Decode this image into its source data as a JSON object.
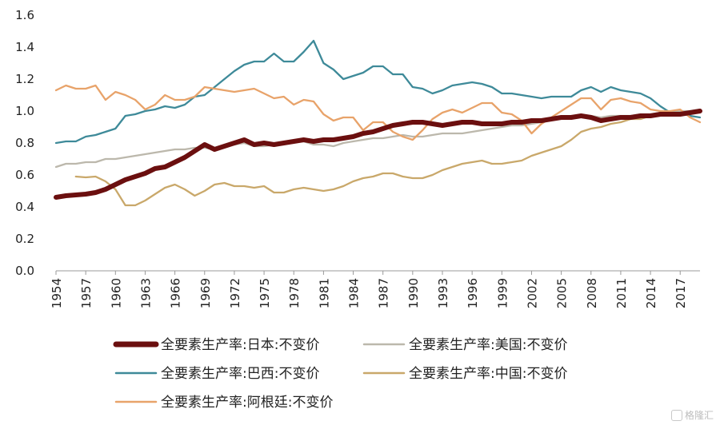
{
  "chart_data": {
    "type": "line",
    "ylim": [
      0,
      1.6
    ],
    "y_ticks": [
      "0.0",
      "0.2",
      "0.4",
      "0.6",
      "0.8",
      "1.0",
      "1.2",
      "1.4",
      "1.6"
    ],
    "x_tick_years": [
      "1954",
      "1957",
      "1960",
      "1963",
      "1966",
      "1969",
      "1972",
      "1975",
      "1978",
      "1981",
      "1984",
      "1987",
      "1990",
      "1993",
      "1996",
      "1999",
      "2002",
      "2005",
      "2008",
      "2011",
      "2014",
      "2017"
    ],
    "x_range": [
      1954,
      2019
    ],
    "grid": false,
    "legend_position": "bottom",
    "series": [
      {
        "name": "全要素生产率:日本:不变价",
        "color": "#6b0f0f",
        "x": [
          1954,
          1955,
          1956,
          1957,
          1958,
          1959,
          1960,
          1961,
          1962,
          1963,
          1964,
          1965,
          1966,
          1967,
          1968,
          1969,
          1970,
          1971,
          1972,
          1973,
          1974,
          1975,
          1976,
          1977,
          1978,
          1979,
          1980,
          1981,
          1982,
          1983,
          1984,
          1985,
          1986,
          1987,
          1988,
          1989,
          1990,
          1991,
          1992,
          1993,
          1994,
          1995,
          1996,
          1997,
          1998,
          1999,
          2000,
          2001,
          2002,
          2003,
          2004,
          2005,
          2006,
          2007,
          2008,
          2009,
          2010,
          2011,
          2012,
          2013,
          2014,
          2015,
          2016,
          2017,
          2018,
          2019
        ],
        "y": [
          0.46,
          0.47,
          0.475,
          0.48,
          0.49,
          0.51,
          0.54,
          0.57,
          0.59,
          0.61,
          0.64,
          0.65,
          0.68,
          0.71,
          0.75,
          0.79,
          0.76,
          0.78,
          0.8,
          0.82,
          0.79,
          0.8,
          0.79,
          0.8,
          0.81,
          0.82,
          0.81,
          0.82,
          0.82,
          0.83,
          0.84,
          0.86,
          0.87,
          0.89,
          0.91,
          0.92,
          0.93,
          0.93,
          0.92,
          0.91,
          0.92,
          0.93,
          0.93,
          0.92,
          0.92,
          0.92,
          0.93,
          0.93,
          0.94,
          0.94,
          0.95,
          0.96,
          0.96,
          0.97,
          0.96,
          0.94,
          0.95,
          0.96,
          0.96,
          0.97,
          0.97,
          0.98,
          0.98,
          0.98,
          0.99,
          1.0
        ]
      },
      {
        "name": "全要素生产率:美国:不变价",
        "color": "#bcb8ac",
        "x": [
          1954,
          1955,
          1956,
          1957,
          1958,
          1959,
          1960,
          1961,
          1962,
          1963,
          1964,
          1965,
          1966,
          1967,
          1968,
          1969,
          1970,
          1971,
          1972,
          1973,
          1974,
          1975,
          1976,
          1977,
          1978,
          1979,
          1980,
          1981,
          1982,
          1983,
          1984,
          1985,
          1986,
          1987,
          1988,
          1989,
          1990,
          1991,
          1992,
          1993,
          1994,
          1995,
          1996,
          1997,
          1998,
          1999,
          2000,
          2001,
          2002,
          2003,
          2004,
          2005,
          2006,
          2007,
          2008,
          2009,
          2010,
          2011,
          2012,
          2013,
          2014,
          2015,
          2016,
          2017,
          2018,
          2019
        ],
        "y": [
          0.65,
          0.67,
          0.67,
          0.68,
          0.68,
          0.7,
          0.7,
          0.71,
          0.72,
          0.73,
          0.74,
          0.75,
          0.76,
          0.76,
          0.77,
          0.77,
          0.76,
          0.78,
          0.79,
          0.8,
          0.78,
          0.78,
          0.79,
          0.8,
          0.81,
          0.81,
          0.79,
          0.79,
          0.78,
          0.8,
          0.81,
          0.82,
          0.83,
          0.83,
          0.84,
          0.85,
          0.84,
          0.84,
          0.85,
          0.86,
          0.86,
          0.86,
          0.87,
          0.88,
          0.89,
          0.9,
          0.91,
          0.91,
          0.92,
          0.93,
          0.95,
          0.96,
          0.97,
          0.97,
          0.97,
          0.96,
          0.97,
          0.97,
          0.97,
          0.98,
          0.98,
          0.99,
          0.99,
          1.0,
          1.0,
          1.01
        ]
      },
      {
        "name": "全要素生产率:巴西:不变价",
        "color": "#3e8a99",
        "x": [
          1954,
          1955,
          1956,
          1957,
          1958,
          1959,
          1960,
          1961,
          1962,
          1963,
          1964,
          1965,
          1966,
          1967,
          1968,
          1969,
          1970,
          1971,
          1972,
          1973,
          1974,
          1975,
          1976,
          1977,
          1978,
          1979,
          1980,
          1981,
          1982,
          1983,
          1984,
          1985,
          1986,
          1987,
          1988,
          1989,
          1990,
          1991,
          1992,
          1993,
          1994,
          1995,
          1996,
          1997,
          1998,
          1999,
          2000,
          2001,
          2002,
          2003,
          2004,
          2005,
          2006,
          2007,
          2008,
          2009,
          2010,
          2011,
          2012,
          2013,
          2014,
          2015,
          2016,
          2017,
          2018,
          2019
        ],
        "y": [
          0.8,
          0.81,
          0.81,
          0.84,
          0.85,
          0.87,
          0.89,
          0.97,
          0.98,
          1.0,
          1.01,
          1.03,
          1.02,
          1.04,
          1.09,
          1.1,
          1.15,
          1.2,
          1.25,
          1.29,
          1.31,
          1.31,
          1.36,
          1.31,
          1.31,
          1.37,
          1.44,
          1.3,
          1.26,
          1.2,
          1.22,
          1.24,
          1.28,
          1.28,
          1.23,
          1.23,
          1.15,
          1.14,
          1.11,
          1.13,
          1.16,
          1.17,
          1.18,
          1.17,
          1.15,
          1.11,
          1.11,
          1.1,
          1.09,
          1.08,
          1.09,
          1.09,
          1.09,
          1.13,
          1.15,
          1.12,
          1.15,
          1.13,
          1.12,
          1.11,
          1.08,
          1.03,
          0.99,
          0.99,
          0.97,
          0.96
        ]
      },
      {
        "name": "全要素生产率:中国:不变价",
        "color": "#c9a86a",
        "x": [
          1956,
          1957,
          1958,
          1959,
          1960,
          1961,
          1962,
          1963,
          1964,
          1965,
          1966,
          1967,
          1968,
          1969,
          1970,
          1971,
          1972,
          1973,
          1974,
          1975,
          1976,
          1977,
          1978,
          1979,
          1980,
          1981,
          1982,
          1983,
          1984,
          1985,
          1986,
          1987,
          1988,
          1989,
          1990,
          1991,
          1992,
          1993,
          1994,
          1995,
          1996,
          1997,
          1998,
          1999,
          2000,
          2001,
          2002,
          2003,
          2004,
          2005,
          2006,
          2007,
          2008,
          2009,
          2010,
          2011,
          2012,
          2013,
          2014,
          2015,
          2016,
          2017,
          2018,
          2019
        ],
        "y": [
          0.59,
          0.585,
          0.59,
          0.56,
          0.51,
          0.41,
          0.41,
          0.44,
          0.48,
          0.52,
          0.54,
          0.51,
          0.47,
          0.5,
          0.54,
          0.55,
          0.53,
          0.53,
          0.52,
          0.53,
          0.49,
          0.49,
          0.51,
          0.52,
          0.51,
          0.5,
          0.51,
          0.53,
          0.56,
          0.58,
          0.59,
          0.61,
          0.61,
          0.59,
          0.58,
          0.58,
          0.6,
          0.63,
          0.65,
          0.67,
          0.68,
          0.69,
          0.67,
          0.67,
          0.68,
          0.69,
          0.72,
          0.74,
          0.76,
          0.78,
          0.82,
          0.87,
          0.89,
          0.9,
          0.92,
          0.93,
          0.95,
          0.95,
          0.97,
          0.98,
          0.99,
          0.99,
          0.99,
          1.0
        ]
      },
      {
        "name": "全要素生产率:阿根廷:不变价",
        "color": "#e8a36a",
        "x": [
          1954,
          1955,
          1956,
          1957,
          1958,
          1959,
          1960,
          1961,
          1962,
          1963,
          1964,
          1965,
          1966,
          1967,
          1968,
          1969,
          1970,
          1971,
          1972,
          1973,
          1974,
          1975,
          1976,
          1977,
          1978,
          1979,
          1980,
          1981,
          1982,
          1983,
          1984,
          1985,
          1986,
          1987,
          1988,
          1989,
          1990,
          1991,
          1992,
          1993,
          1994,
          1995,
          1996,
          1997,
          1998,
          1999,
          2000,
          2001,
          2002,
          2003,
          2004,
          2005,
          2006,
          2007,
          2008,
          2009,
          2010,
          2011,
          2012,
          2013,
          2014,
          2015,
          2016,
          2017,
          2018,
          2019
        ],
        "y": [
          1.13,
          1.16,
          1.14,
          1.14,
          1.16,
          1.07,
          1.12,
          1.1,
          1.07,
          1.01,
          1.04,
          1.1,
          1.07,
          1.07,
          1.09,
          1.15,
          1.14,
          1.13,
          1.12,
          1.13,
          1.14,
          1.11,
          1.08,
          1.09,
          1.04,
          1.07,
          1.06,
          0.98,
          0.94,
          0.96,
          0.96,
          0.88,
          0.93,
          0.93,
          0.87,
          0.84,
          0.82,
          0.88,
          0.95,
          0.99,
          1.01,
          0.99,
          1.02,
          1.05,
          1.05,
          0.99,
          0.98,
          0.94,
          0.86,
          0.92,
          0.96,
          1.0,
          1.04,
          1.08,
          1.08,
          1.01,
          1.07,
          1.08,
          1.06,
          1.05,
          1.01,
          1.0,
          1.0,
          1.01,
          0.96,
          0.93
        ]
      }
    ]
  },
  "legend": [
    {
      "label": "全要素生产率:日本:不变价",
      "color": "#6b0f0f",
      "width": 7
    },
    {
      "label": "全要素生产率:美国:不变价",
      "color": "#bcb8ac",
      "width": 2.5
    },
    {
      "label": "全要素生产率:巴西:不变价",
      "color": "#3e8a99",
      "width": 2.5
    },
    {
      "label": "全要素生产率:中国:不变价",
      "color": "#c9a86a",
      "width": 2.5
    },
    {
      "label": "全要素生产率:阿根廷:不变价",
      "color": "#e8a36a",
      "width": 2.5
    }
  ],
  "watermark": {
    "text": "格隆汇"
  }
}
